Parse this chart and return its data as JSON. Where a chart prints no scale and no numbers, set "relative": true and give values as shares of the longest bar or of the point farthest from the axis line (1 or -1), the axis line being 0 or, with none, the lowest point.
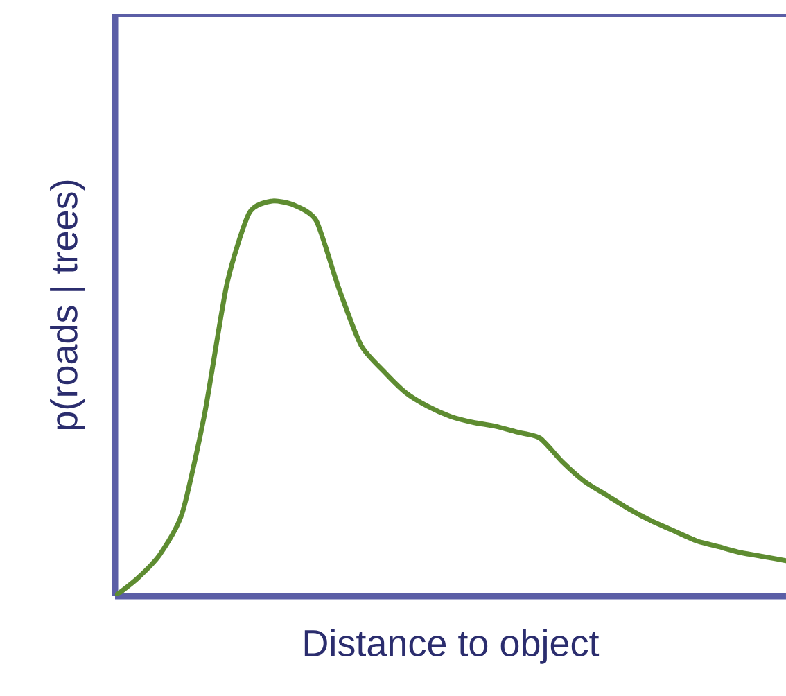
{
  "chart_data": {
    "type": "line",
    "relative": true,
    "xlabel": "Distance to object",
    "ylabel": "p(roads | trees)",
    "categories": [
      null,
      null,
      null,
      null,
      null,
      null,
      null,
      null,
      null,
      null,
      null,
      null,
      null,
      null,
      null,
      null,
      null,
      null,
      null,
      null,
      null,
      null,
      null,
      null,
      null,
      null,
      null,
      null,
      null,
      null,
      null
    ],
    "series": [
      {
        "color": "#5e8c31",
        "values": [
          0,
          0.045,
          0.105,
          0.21,
          0.46,
          0.79,
          0.97,
          1.0,
          0.99,
          0.95,
          0.78,
          0.635,
          0.57,
          0.515,
          0.48,
          0.455,
          0.44,
          0.43,
          0.415,
          0.4,
          0.34,
          0.29,
          0.255,
          0.22,
          0.19,
          0.165,
          0.14,
          0.125,
          0.11,
          0.1,
          0.09
        ]
      }
    ],
    "marker": "none",
    "line_style": "solid"
  }
}
